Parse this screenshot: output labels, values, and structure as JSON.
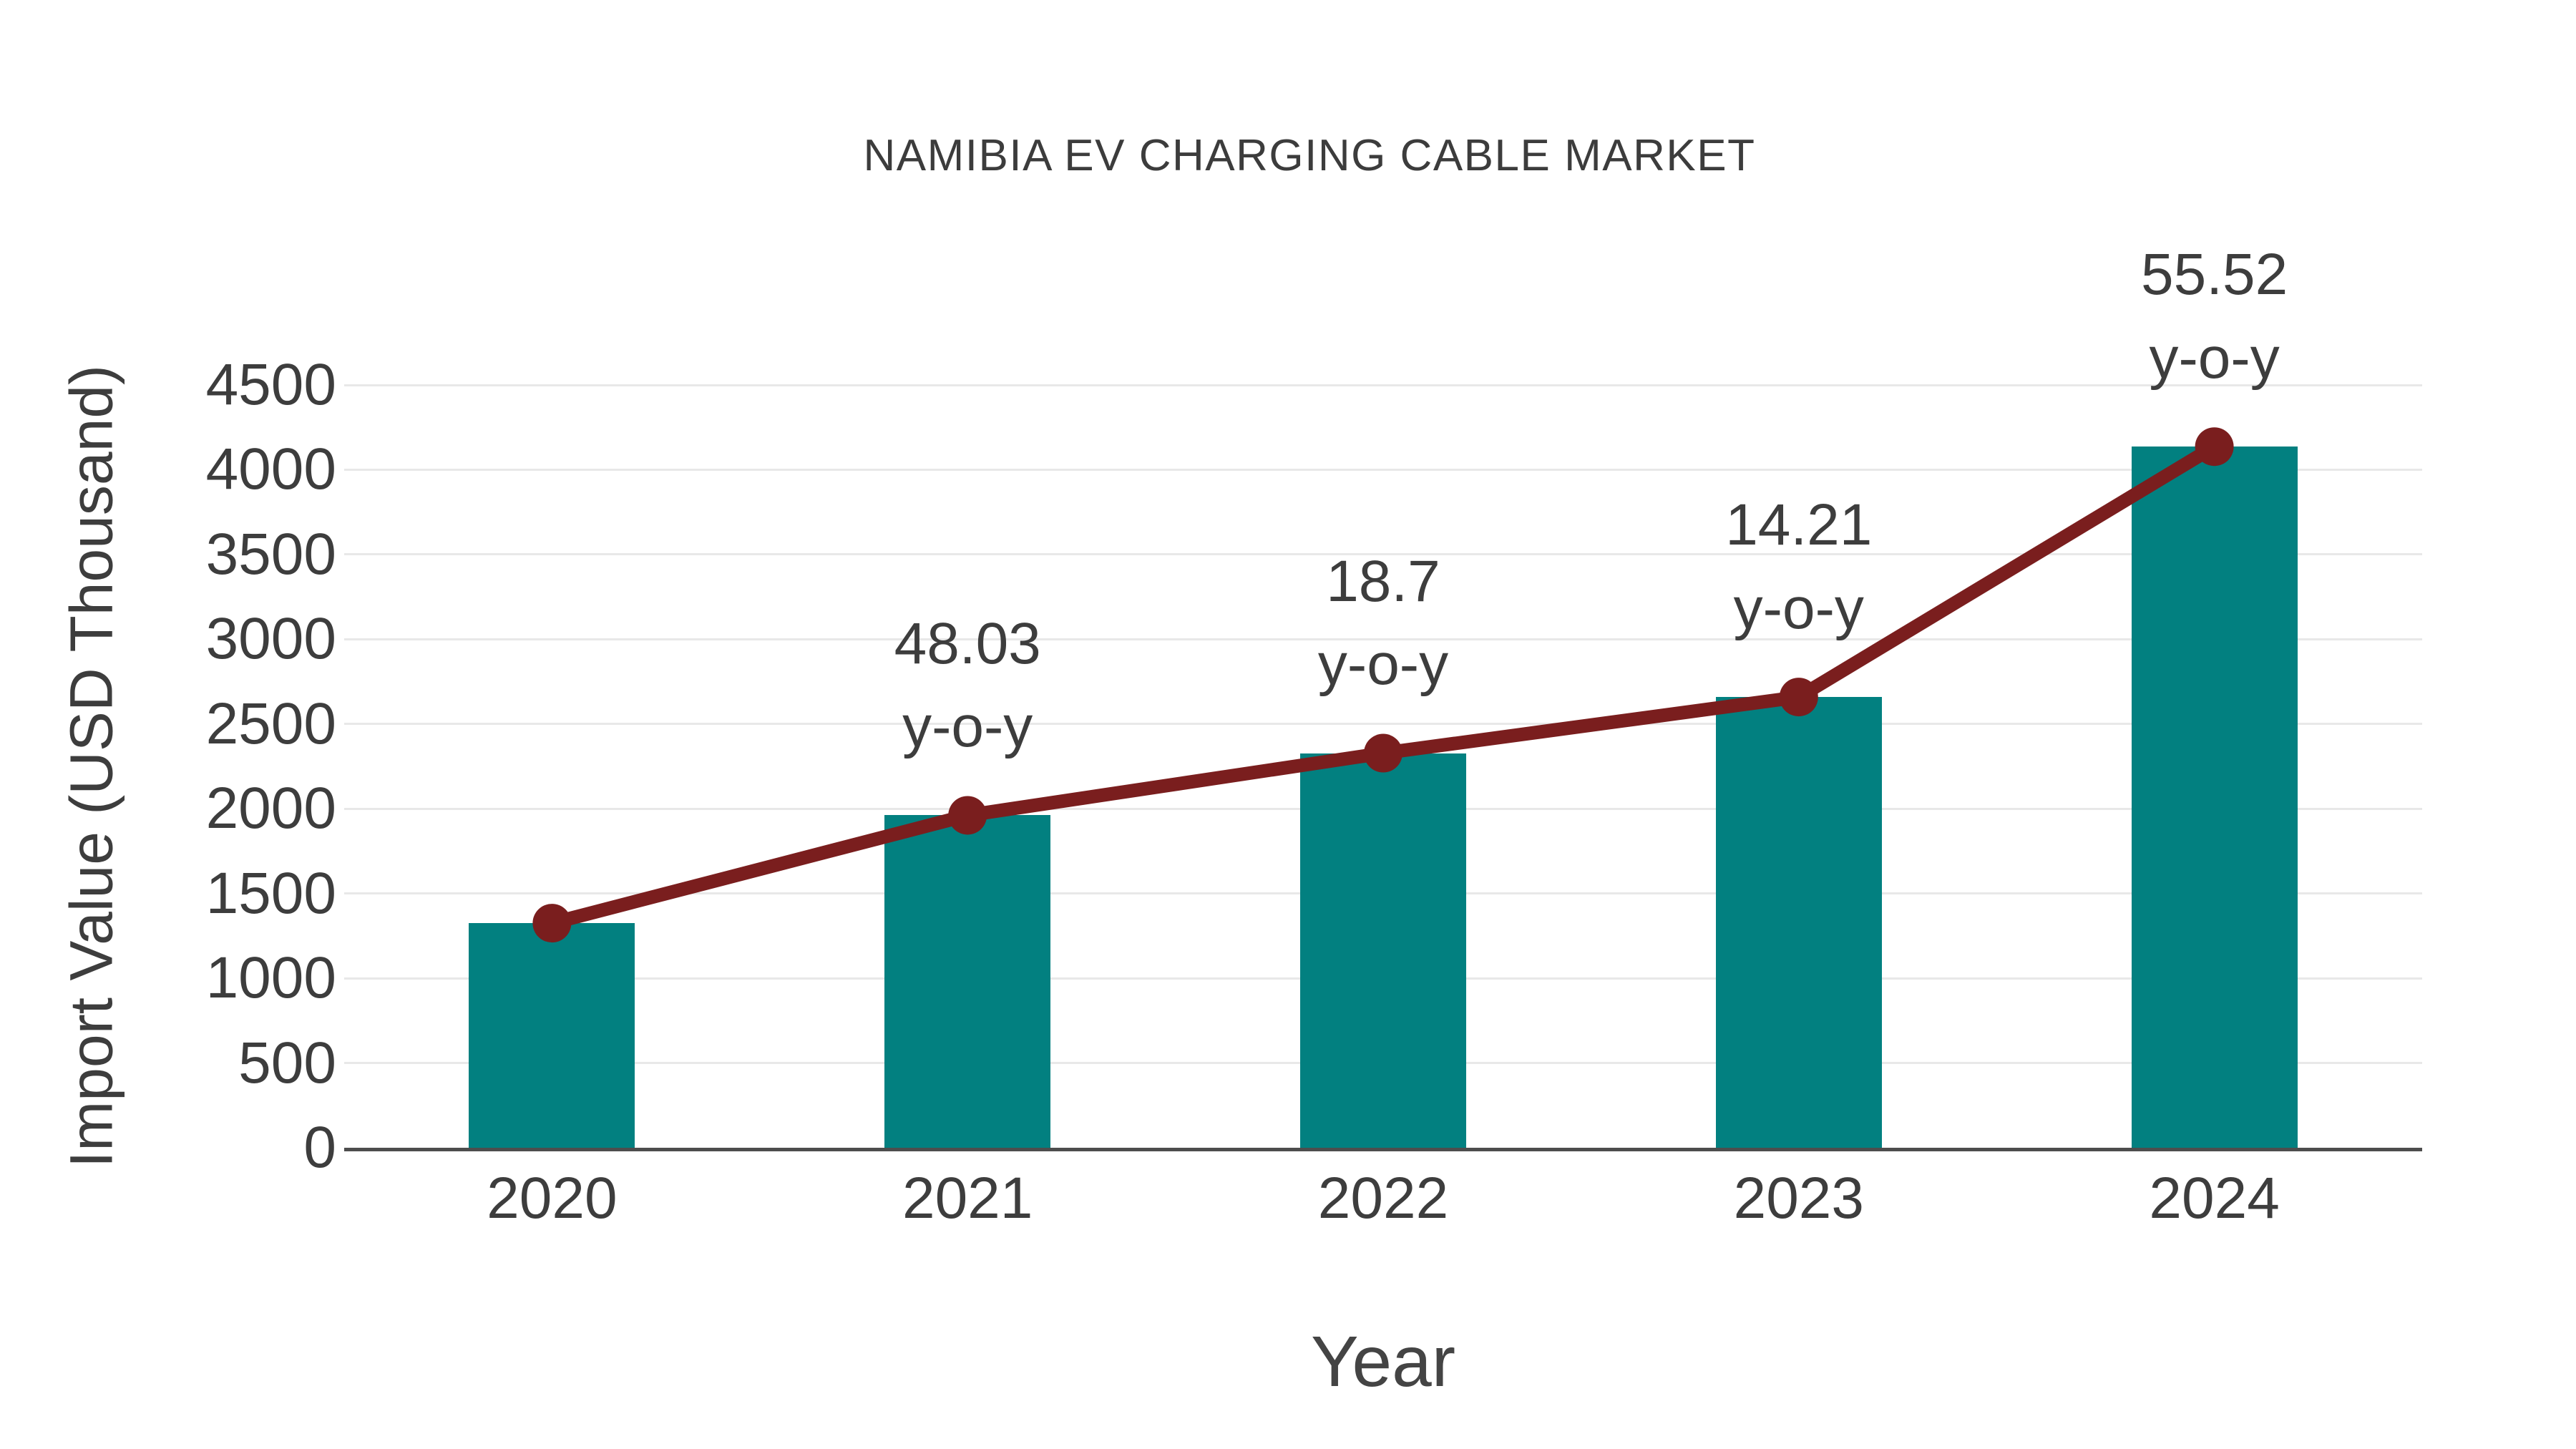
{
  "title": "NAMIBIA EV CHARGING CABLE MARKET",
  "colors": {
    "bar": "#028080",
    "line": "#7A1E1E",
    "text": "#3d3d3d",
    "grid": "#e8e8e8",
    "axis": "#4d4d4d",
    "background": "#ffffff"
  },
  "chart_data": {
    "type": "bar",
    "title": "NAMIBIA EV CHARGING CABLE MARKET",
    "xlabel": "Year",
    "ylabel": "Import Value (USD Thousand)",
    "categories": [
      "2020",
      "2021",
      "2022",
      "2023",
      "2024"
    ],
    "series": [
      {
        "name": "Import Value (USD Thousand)",
        "type": "bar",
        "color": "#028080",
        "values": [
          1325,
          1961,
          2328,
          2659,
          4136
        ]
      },
      {
        "name": "y-o-y growth trend line",
        "type": "line",
        "color": "#7A1E1E",
        "values": [
          1325,
          1961,
          2328,
          2659,
          4136
        ]
      }
    ],
    "annotations": [
      {
        "category": "2021",
        "line1": "48.03",
        "line2": "y-o-y"
      },
      {
        "category": "2022",
        "line1": "18.7",
        "line2": "y-o-y"
      },
      {
        "category": "2023",
        "line1": "14.21",
        "line2": "y-o-y"
      },
      {
        "category": "2024",
        "line1": "55.52",
        "line2": "y-o-y"
      }
    ],
    "ylim": [
      0,
      4500
    ],
    "yticks": [
      0,
      500,
      1000,
      1500,
      2000,
      2500,
      3000,
      3500,
      4000,
      4500
    ],
    "grid": true,
    "legend": false
  }
}
